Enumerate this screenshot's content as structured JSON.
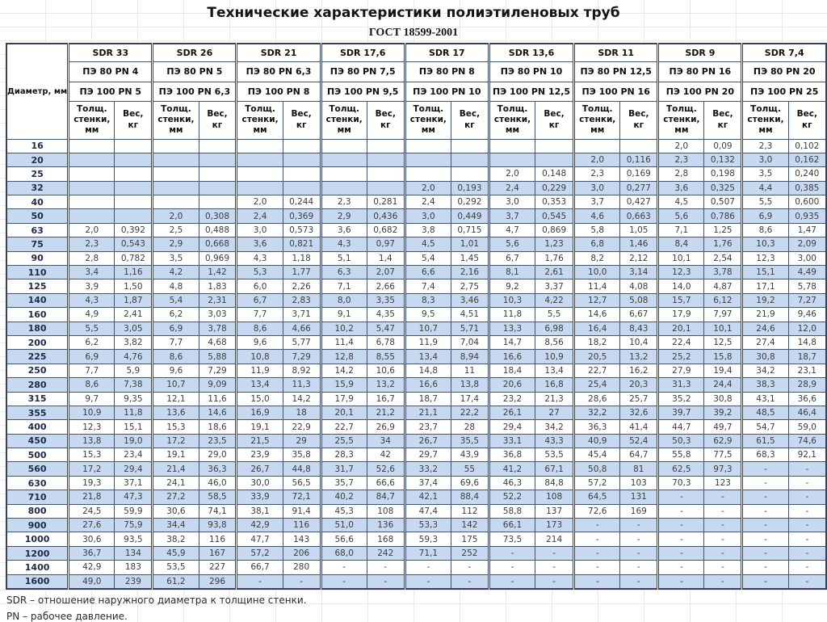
{
  "title": "Технические характеристики полиэтиленовых труб",
  "subtitle": "ГОСТ 18599-2001",
  "table": {
    "diameter_label": "Диаметр, мм",
    "wall_label": "Толщ. стенки, мм",
    "weight_label": "Вес, кг",
    "groups": [
      {
        "sdr": "SDR 33",
        "pe80": "ПЭ 80 PN 4",
        "pe100": "ПЭ 100 PN 5"
      },
      {
        "sdr": "SDR 26",
        "pe80": "ПЭ 80 PN 5",
        "pe100": "ПЭ 100 PN 6,3"
      },
      {
        "sdr": "SDR 21",
        "pe80": "ПЭ 80 PN 6,3",
        "pe100": "ПЭ 100 PN 8"
      },
      {
        "sdr": "SDR 17,6",
        "pe80": "ПЭ 80 PN 7,5",
        "pe100": "ПЭ 100 PN 9,5"
      },
      {
        "sdr": "SDR 17",
        "pe80": "ПЭ 80 PN 8",
        "pe100": "ПЭ 100 PN 10"
      },
      {
        "sdr": "SDR 13,6",
        "pe80": "ПЭ 80 PN 10",
        "pe100": "ПЭ 100 PN 12,5"
      },
      {
        "sdr": "SDR 11",
        "pe80": "ПЭ 80 PN 12,5",
        "pe100": "ПЭ 100 PN 16"
      },
      {
        "sdr": "SDR 9",
        "pe80": "ПЭ 80 PN 16",
        "pe100": "ПЭ 100 PN 20"
      },
      {
        "sdr": "SDR 7,4",
        "pe80": "ПЭ 80 PN 20",
        "pe100": "ПЭ 100 PN 25"
      }
    ],
    "rows": [
      {
        "d": "16",
        "cells": [
          "",
          "",
          "",
          "",
          "",
          "",
          "",
          "",
          "",
          "",
          "",
          "",
          "",
          "",
          "2,0",
          "0,09",
          "2,3",
          "0,102"
        ]
      },
      {
        "d": "20",
        "cells": [
          "",
          "",
          "",
          "",
          "",
          "",
          "",
          "",
          "",
          "",
          "",
          "",
          "2,0",
          "0,116",
          "2,3",
          "0,132",
          "3,0",
          "0,162"
        ]
      },
      {
        "d": "25",
        "cells": [
          "",
          "",
          "",
          "",
          "",
          "",
          "",
          "",
          "",
          "",
          "2,0",
          "0,148",
          "2,3",
          "0,169",
          "2,8",
          "0,198",
          "3,5",
          "0,240"
        ]
      },
      {
        "d": "32",
        "cells": [
          "",
          "",
          "",
          "",
          "",
          "",
          "",
          "",
          "2,0",
          "0,193",
          "2,4",
          "0,229",
          "3,0",
          "0,277",
          "3,6",
          "0,325",
          "4,4",
          "0,385"
        ]
      },
      {
        "d": "40",
        "cells": [
          "",
          "",
          "",
          "",
          "2,0",
          "0,244",
          "2,3",
          "0,281",
          "2,4",
          "0,292",
          "3,0",
          "0,353",
          "3,7",
          "0,427",
          "4,5",
          "0,507",
          "5,5",
          "0,600"
        ]
      },
      {
        "d": "50",
        "cells": [
          "",
          "",
          "2,0",
          "0,308",
          "2,4",
          "0,369",
          "2,9",
          "0,436",
          "3,0",
          "0,449",
          "3,7",
          "0,545",
          "4,6",
          "0,663",
          "5,6",
          "0,786",
          "6,9",
          "0,935"
        ]
      },
      {
        "d": "63",
        "cells": [
          "2,0",
          "0,392",
          "2,5",
          "0,488",
          "3,0",
          "0,573",
          "3,6",
          "0,682",
          "3,8",
          "0,715",
          "4,7",
          "0,869",
          "5,8",
          "1,05",
          "7,1",
          "1,25",
          "8,6",
          "1,47"
        ]
      },
      {
        "d": "75",
        "cells": [
          "2,3",
          "0,543",
          "2,9",
          "0,668",
          "3,6",
          "0,821",
          "4,3",
          "0,97",
          "4,5",
          "1,01",
          "5,6",
          "1,23",
          "6,8",
          "1,46",
          "8,4",
          "1,76",
          "10,3",
          "2,09"
        ]
      },
      {
        "d": "90",
        "cells": [
          "2,8",
          "0,782",
          "3,5",
          "0,969",
          "4,3",
          "1,18",
          "5,1",
          "1,4",
          "5,4",
          "1,45",
          "6,7",
          "1,76",
          "8,2",
          "2,12",
          "10,1",
          "2,54",
          "12,3",
          "3,00"
        ]
      },
      {
        "d": "110",
        "cells": [
          "3,4",
          "1,16",
          "4,2",
          "1,42",
          "5,3",
          "1,77",
          "6,3",
          "2,07",
          "6,6",
          "2,16",
          "8,1",
          "2,61",
          "10,0",
          "3,14",
          "12,3",
          "3,78",
          "15,1",
          "4,49"
        ]
      },
      {
        "d": "125",
        "cells": [
          "3,9",
          "1,50",
          "4,8",
          "1,83",
          "6,0",
          "2,26",
          "7,1",
          "2,66",
          "7,4",
          "2,75",
          "9,2",
          "3,37",
          "11,4",
          "4,08",
          "14,0",
          "4,87",
          "17,1",
          "5,78"
        ]
      },
      {
        "d": "140",
        "cells": [
          "4,3",
          "1,87",
          "5,4",
          "2,31",
          "6,7",
          "2,83",
          "8,0",
          "3,35",
          "8,3",
          "3,46",
          "10,3",
          "4,22",
          "12,7",
          "5,08",
          "15,7",
          "6,12",
          "19,2",
          "7,27"
        ]
      },
      {
        "d": "160",
        "cells": [
          "4,9",
          "2,41",
          "6,2",
          "3,03",
          "7,7",
          "3,71",
          "9,1",
          "4,35",
          "9,5",
          "4,51",
          "11,8",
          "5,5",
          "14,6",
          "6,67",
          "17,9",
          "7,97",
          "21,9",
          "9,46"
        ]
      },
      {
        "d": "180",
        "cells": [
          "5,5",
          "3,05",
          "6,9",
          "3,78",
          "8,6",
          "4,66",
          "10,2",
          "5,47",
          "10,7",
          "5,71",
          "13,3",
          "6,98",
          "16,4",
          "8,43",
          "20,1",
          "10,1",
          "24,6",
          "12,0"
        ]
      },
      {
        "d": "200",
        "cells": [
          "6,2",
          "3,82",
          "7,7",
          "4,68",
          "9,6",
          "5,77",
          "11,4",
          "6,78",
          "11,9",
          "7,04",
          "14,7",
          "8,56",
          "18,2",
          "10,4",
          "22,4",
          "12,5",
          "27,4",
          "14,8"
        ]
      },
      {
        "d": "225",
        "cells": [
          "6,9",
          "4,76",
          "8,6",
          "5,88",
          "10,8",
          "7,29",
          "12,8",
          "8,55",
          "13,4",
          "8,94",
          "16,6",
          "10,9",
          "20,5",
          "13,2",
          "25,2",
          "15,8",
          "30,8",
          "18,7"
        ]
      },
      {
        "d": "250",
        "cells": [
          "7,7",
          "5,9",
          "9,6",
          "7,29",
          "11,9",
          "8,92",
          "14,2",
          "10,6",
          "14,8",
          "11",
          "18,4",
          "13,4",
          "22,7",
          "16,2",
          "27,9",
          "19,4",
          "34,2",
          "23,1"
        ]
      },
      {
        "d": "280",
        "cells": [
          "8,6",
          "7,38",
          "10,7",
          "9,09",
          "13,4",
          "11,3",
          "15,9",
          "13,2",
          "16,6",
          "13,8",
          "20,6",
          "16,8",
          "25,4",
          "20,3",
          "31,3",
          "24,4",
          "38,3",
          "28,9"
        ]
      },
      {
        "d": "315",
        "cells": [
          "9,7",
          "9,35",
          "12,1",
          "11,6",
          "15,0",
          "14,2",
          "17,9",
          "16,7",
          "18,7",
          "17,4",
          "23,2",
          "21,3",
          "28,6",
          "25,7",
          "35,2",
          "30,8",
          "43,1",
          "36,6"
        ]
      },
      {
        "d": "355",
        "cells": [
          "10,9",
          "11,8",
          "13,6",
          "14,6",
          "16,9",
          "18",
          "20,1",
          "21,2",
          "21,1",
          "22,2",
          "26,1",
          "27",
          "32,2",
          "32,6",
          "39,7",
          "39,2",
          "48,5",
          "46,4"
        ]
      },
      {
        "d": "400",
        "cells": [
          "12,3",
          "15,1",
          "15,3",
          "18,6",
          "19,1",
          "22,9",
          "22,7",
          "26,9",
          "23,7",
          "28",
          "29,4",
          "34,2",
          "36,3",
          "41,4",
          "44,7",
          "49,7",
          "54,7",
          "59,0"
        ]
      },
      {
        "d": "450",
        "cells": [
          "13,8",
          "19,0",
          "17,2",
          "23,5",
          "21,5",
          "29",
          "25,5",
          "34",
          "26,7",
          "35,5",
          "33,1",
          "43,3",
          "40,9",
          "52,4",
          "50,3",
          "62,9",
          "61,5",
          "74,6"
        ]
      },
      {
        "d": "500",
        "cells": [
          "15,3",
          "23,4",
          "19,1",
          "29,0",
          "23,9",
          "35,8",
          "28,3",
          "42",
          "29,7",
          "43,9",
          "36,8",
          "53,5",
          "45,4",
          "64,7",
          "55,8",
          "77,5",
          "68,3",
          "92,1"
        ]
      },
      {
        "d": "560",
        "cells": [
          "17,2",
          "29,4",
          "21,4",
          "36,3",
          "26,7",
          "44,8",
          "31,7",
          "52,6",
          "33,2",
          "55",
          "41,2",
          "67,1",
          "50,8",
          "81",
          "62,5",
          "97,3",
          "-",
          "-"
        ]
      },
      {
        "d": "630",
        "cells": [
          "19,3",
          "37,1",
          "24,1",
          "46,0",
          "30,0",
          "56,5",
          "35,7",
          "66,6",
          "37,4",
          "69,6",
          "46,3",
          "84,8",
          "57,2",
          "103",
          "70,3",
          "123",
          "-",
          "-"
        ]
      },
      {
        "d": "710",
        "cells": [
          "21,8",
          "47,3",
          "27,2",
          "58,5",
          "33,9",
          "72,1",
          "40,2",
          "84,7",
          "42,1",
          "88,4",
          "52,2",
          "108",
          "64,5",
          "131",
          "-",
          "-",
          "-",
          "-"
        ]
      },
      {
        "d": "800",
        "cells": [
          "24,5",
          "59,9",
          "30,6",
          "74,1",
          "38,1",
          "91,4",
          "45,3",
          "108",
          "47,4",
          "112",
          "58,8",
          "137",
          "72,6",
          "169",
          "-",
          "-",
          "-",
          "-"
        ]
      },
      {
        "d": "900",
        "cells": [
          "27,6",
          "75,9",
          "34,4",
          "93,8",
          "42,9",
          "116",
          "51,0",
          "136",
          "53,3",
          "142",
          "66,1",
          "173",
          "-",
          "-",
          "-",
          "-",
          "-",
          "-"
        ]
      },
      {
        "d": "1000",
        "cells": [
          "30,6",
          "93,5",
          "38,2",
          "116",
          "47,7",
          "143",
          "56,6",
          "168",
          "59,3",
          "175",
          "73,5",
          "214",
          "-",
          "-",
          "-",
          "-",
          "-",
          "-"
        ]
      },
      {
        "d": "1200",
        "cells": [
          "36,7",
          "134",
          "45,9",
          "167",
          "57,2",
          "206",
          "68,0",
          "242",
          "71,1",
          "252",
          "-",
          "-",
          "-",
          "-",
          "-",
          "-",
          "-",
          "-"
        ]
      },
      {
        "d": "1400",
        "cells": [
          "42,9",
          "183",
          "53,5",
          "227",
          "66,7",
          "280",
          "-",
          "-",
          "-",
          "-",
          "-",
          "-",
          "-",
          "-",
          "-",
          "-",
          "-",
          "-"
        ]
      },
      {
        "d": "1600",
        "cells": [
          "49,0",
          "239",
          "61,2",
          "296",
          "-",
          "-",
          "-",
          "-",
          "-",
          "-",
          "-",
          "-",
          "-",
          "-",
          "-",
          "-",
          "-",
          "-"
        ]
      }
    ]
  },
  "footnotes": [
    "SDR – отношение наружного диаметра к толщине стенки.",
    "PN – рабочее давление."
  ]
}
